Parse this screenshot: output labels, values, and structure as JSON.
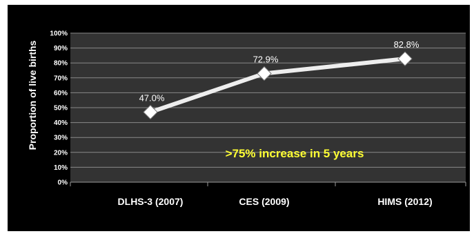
{
  "chart_data": {
    "type": "line",
    "title": "",
    "xlabel": "",
    "ylabel": "Proportion of live births",
    "categories": [
      "DLHS-3 (2007)",
      "CES (2009)",
      "HIMS (2012)"
    ],
    "series": [
      {
        "values": [
          47.0,
          72.9,
          82.8
        ]
      }
    ],
    "data_labels": [
      "47.0%",
      "72.9%",
      "82.8%"
    ],
    "yticks": [
      "0%",
      "10%",
      "20%",
      "30%",
      "40%",
      "50%",
      "60%",
      "70%",
      "80%",
      "90%",
      "100%"
    ],
    "ylim": [
      0,
      100
    ],
    "grid": true,
    "legend": "none",
    "annotation": ">75% increase in 5 years",
    "colors": {
      "background": "#000000",
      "plot_area": "#333333",
      "gridline": "#8a8a8a",
      "line": "#eeeeee",
      "marker": "#ffffff",
      "annotation": "#ffff33"
    }
  }
}
